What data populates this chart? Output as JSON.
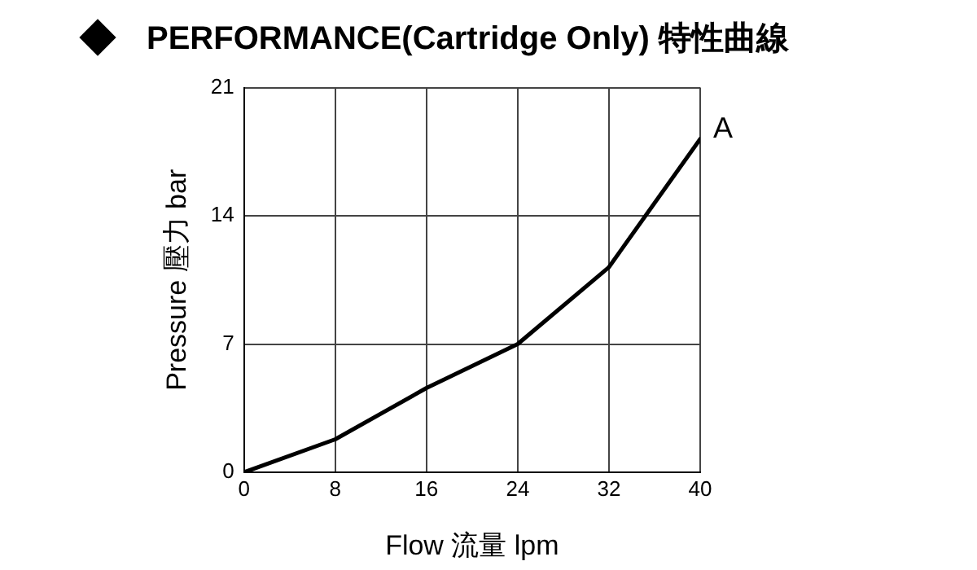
{
  "chart_data": {
    "type": "line",
    "title": "PERFORMANCE(Cartridge Only) 特性曲線",
    "xlabel": "Flow 流量 lpm",
    "ylabel": "Pressure 壓力 bar",
    "x": [
      0,
      8,
      16,
      24,
      32,
      40
    ],
    "series": [
      {
        "name": "A",
        "color": "#000000",
        "values": [
          0,
          1.8,
          4.6,
          7,
          11.2,
          18.2
        ]
      }
    ],
    "xlim": [
      0,
      40
    ],
    "xticks": [
      0,
      8,
      16,
      24,
      32,
      40
    ],
    "ylim": [
      0,
      21
    ],
    "yticks": [
      0,
      7,
      14,
      21
    ],
    "grid": true,
    "legend": false,
    "marker": "none",
    "line_style": "solid"
  }
}
